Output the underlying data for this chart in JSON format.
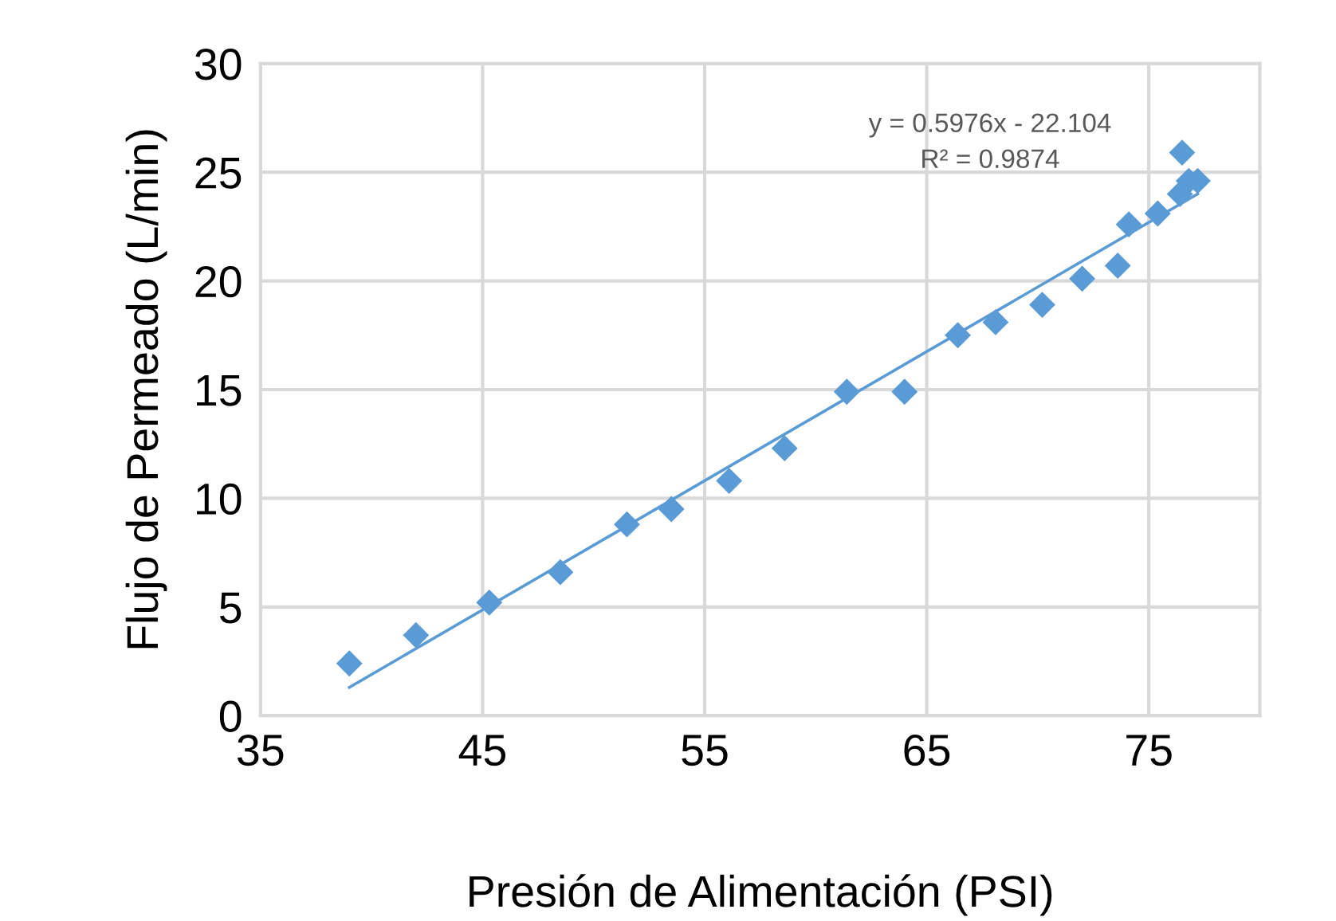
{
  "chart_data": {
    "type": "scatter",
    "xlabel": "Presión de Alimentación (PSI)",
    "ylabel": "Flujo de Permeado (L/min)",
    "xlim": [
      35,
      80
    ],
    "xticks": [
      35,
      45,
      55,
      65,
      75
    ],
    "ylim": [
      0,
      30
    ],
    "yticks": [
      0,
      5,
      10,
      15,
      20,
      25,
      30
    ],
    "grid": true,
    "series": [
      {
        "color": "#5b9bd5",
        "marker": "diamond",
        "x": [
          39.0,
          42.0,
          45.3,
          48.5,
          51.5,
          53.5,
          56.1,
          58.6,
          61.4,
          64.0,
          66.4,
          68.1,
          70.2,
          72.0,
          73.6,
          74.1,
          75.4,
          76.4,
          76.5,
          76.8,
          77.2
        ],
        "values": [
          2.4,
          3.7,
          5.2,
          6.6,
          8.8,
          9.5,
          10.8,
          12.3,
          14.9,
          14.9,
          17.5,
          18.1,
          18.9,
          20.1,
          20.7,
          22.6,
          23.1,
          24.0,
          25.9,
          24.6,
          24.6
        ]
      },
      {
        "type": "line",
        "marker": "none",
        "color": "#5b9bd5",
        "x": [
          39.0,
          77.2
        ],
        "values": [
          1.3,
          24.0
        ]
      }
    ],
    "annotations": [
      "y = 0.5976x - 22.104",
      "R² = 0.9874"
    ]
  }
}
